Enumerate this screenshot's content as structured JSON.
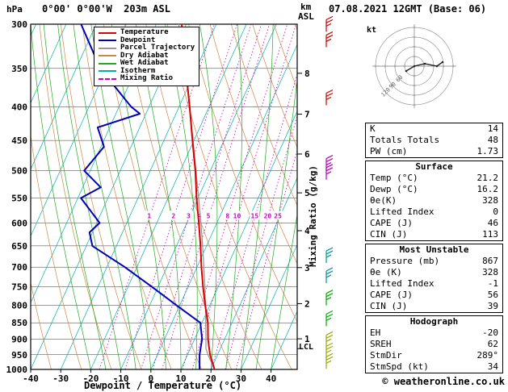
{
  "header": {
    "station_title": "0°00' 0°00'W  203m ASL",
    "datetime_title": "07.08.2021 12GMT (Base: 06)",
    "footer": "© weatheronline.co.uk"
  },
  "axes": {
    "pressure_unit": "hPa",
    "pressure_ticks": [
      300,
      350,
      400,
      450,
      500,
      550,
      600,
      650,
      700,
      750,
      800,
      850,
      900,
      950,
      1000
    ],
    "temp_ticks": [
      -40,
      -30,
      -20,
      -10,
      0,
      10,
      20,
      30,
      40
    ],
    "xlabel": "Dewpoint / Temperature (°C)",
    "km_label": "km",
    "asl_label": "ASL",
    "mixing_ratio_axis_label": "Mixing Ratio (g/kg)",
    "lcl_label": "LCL"
  },
  "legend": [
    {
      "label": "Temperature",
      "color": "#DD0000",
      "dash": false
    },
    {
      "label": "Dewpoint",
      "color": "#0000BB",
      "dash": false
    },
    {
      "label": "Parcel Trajectory",
      "color": "#999999",
      "dash": false
    },
    {
      "label": "Dry Adiabat",
      "color": "#CC8844",
      "dash": false
    },
    {
      "label": "Wet Adiabat",
      "color": "#22AA22",
      "dash": false
    },
    {
      "label": "Isotherm",
      "color": "#00AFAF",
      "dash": false
    },
    {
      "label": "Mixing Ratio",
      "color": "#CC00CC",
      "dash": true
    }
  ],
  "chart_data": {
    "type": "line",
    "title": "Skew-T log-P sounding",
    "xlabel": "Dewpoint / Temperature (°C)",
    "ylabel": "hPa",
    "x_range_c": [
      -40,
      40
    ],
    "pressure_range_hpa": [
      1000,
      300
    ],
    "series": [
      {
        "name": "Temperature",
        "color": "#DD0000",
        "width": 2,
        "points": [
          [
            1000,
            21.2
          ],
          [
            950,
            17.5
          ],
          [
            925,
            16.0
          ],
          [
            900,
            14.5
          ],
          [
            850,
            12.0
          ],
          [
            800,
            8.5
          ],
          [
            750,
            5.0
          ],
          [
            700,
            1.5
          ],
          [
            650,
            -2.0
          ],
          [
            600,
            -6.0
          ],
          [
            550,
            -10.5
          ],
          [
            500,
            -15.0
          ],
          [
            450,
            -20.5
          ],
          [
            400,
            -26.5
          ],
          [
            350,
            -33.5
          ],
          [
            300,
            -41.5
          ]
        ]
      },
      {
        "name": "Dewpoint",
        "color": "#0000BB",
        "width": 2,
        "points": [
          [
            1000,
            16.2
          ],
          [
            950,
            14.0
          ],
          [
            900,
            12.5
          ],
          [
            850,
            9.5
          ],
          [
            800,
            -1.0
          ],
          [
            750,
            -12.0
          ],
          [
            700,
            -24.0
          ],
          [
            650,
            -38.0
          ],
          [
            620,
            -41.0
          ],
          [
            600,
            -39.0
          ],
          [
            550,
            -49.0
          ],
          [
            530,
            -44.0
          ],
          [
            500,
            -52.0
          ],
          [
            460,
            -49.0
          ],
          [
            430,
            -54.0
          ],
          [
            410,
            -42.0
          ],
          [
            400,
            -46.0
          ],
          [
            350,
            -62.0
          ],
          [
            300,
            -75.0
          ]
        ]
      },
      {
        "name": "Parcel Trajectory",
        "color": "#999999",
        "width": 1.3,
        "points": [
          [
            1000,
            21.2
          ],
          [
            950,
            16.8
          ],
          [
            930,
            15.2
          ],
          [
            900,
            13.8
          ],
          [
            850,
            11.3
          ],
          [
            800,
            8.6
          ],
          [
            750,
            5.6
          ],
          [
            700,
            2.3
          ],
          [
            650,
            -1.3
          ],
          [
            600,
            -5.3
          ],
          [
            550,
            -9.8
          ],
          [
            500,
            -14.8
          ],
          [
            450,
            -20.3
          ],
          [
            400,
            -26.5
          ],
          [
            350,
            -33.8
          ],
          [
            300,
            -42.5
          ]
        ]
      }
    ],
    "grid": {
      "isotherms": {
        "min": -110,
        "max": 40,
        "step": 10
      },
      "dry_adiabats_K": {
        "min": 230,
        "max": 440,
        "step": 10
      },
      "wet_adiabats_C": {
        "min": -20,
        "max": 40,
        "step": 5
      },
      "mixing_ratio_g_kg": [
        1,
        2,
        3,
        4,
        5,
        8,
        10,
        15,
        20,
        25
      ]
    },
    "km_ticks": [
      1,
      2,
      3,
      4,
      5,
      6,
      7,
      8
    ],
    "lcl_pressure": 930,
    "wind_barbs": [
      {
        "p": 308,
        "color": "#CC0000"
      },
      {
        "p": 325,
        "color": "#CC0000"
      },
      {
        "p": 398,
        "color": "#CC0000"
      },
      {
        "p": 500,
        "color": "#BB00BB"
      },
      {
        "p": 516,
        "color": "#BB00BB"
      },
      {
        "p": 690,
        "color": "#009999"
      },
      {
        "p": 740,
        "color": "#009999"
      },
      {
        "p": 800,
        "color": "#00AA00"
      },
      {
        "p": 860,
        "color": "#00AA00"
      },
      {
        "p": 925,
        "color": "#99AA00"
      },
      {
        "p": 962,
        "color": "#99AA00"
      },
      {
        "p": 998,
        "color": "#99AA00"
      }
    ]
  },
  "hodograph": {
    "unit_label": "kt",
    "ring_labels": [
      "120",
      "90",
      "60"
    ],
    "trace": [
      [
        -10,
        6
      ],
      [
        0,
        0
      ],
      [
        13,
        -3
      ],
      [
        28,
        0
      ],
      [
        35,
        -5
      ]
    ]
  },
  "tables": [
    {
      "title": "",
      "rows": [
        [
          "K",
          "14"
        ],
        [
          "Totals Totals",
          "48"
        ],
        [
          "PW (cm)",
          "1.73"
        ]
      ]
    },
    {
      "title": "Surface",
      "rows": [
        [
          "Temp (°C)",
          "21.2"
        ],
        [
          "Dewp (°C)",
          "16.2"
        ],
        [
          "θe(K)",
          "328"
        ],
        [
          "Lifted Index",
          "0"
        ],
        [
          "CAPE (J)",
          "46"
        ],
        [
          "CIN (J)",
          "113"
        ]
      ]
    },
    {
      "title": "Most Unstable",
      "rows": [
        [
          "Pressure (mb)",
          "867"
        ],
        [
          "θe (K)",
          "328"
        ],
        [
          "Lifted Index",
          "-1"
        ],
        [
          "CAPE (J)",
          "56"
        ],
        [
          "CIN (J)",
          "39"
        ]
      ]
    },
    {
      "title": "Hodograph",
      "rows": [
        [
          "EH",
          "-20"
        ],
        [
          "SREH",
          "62"
        ],
        [
          "StmDir",
          "289°"
        ],
        [
          "StmSpd (kt)",
          "34"
        ]
      ]
    }
  ]
}
